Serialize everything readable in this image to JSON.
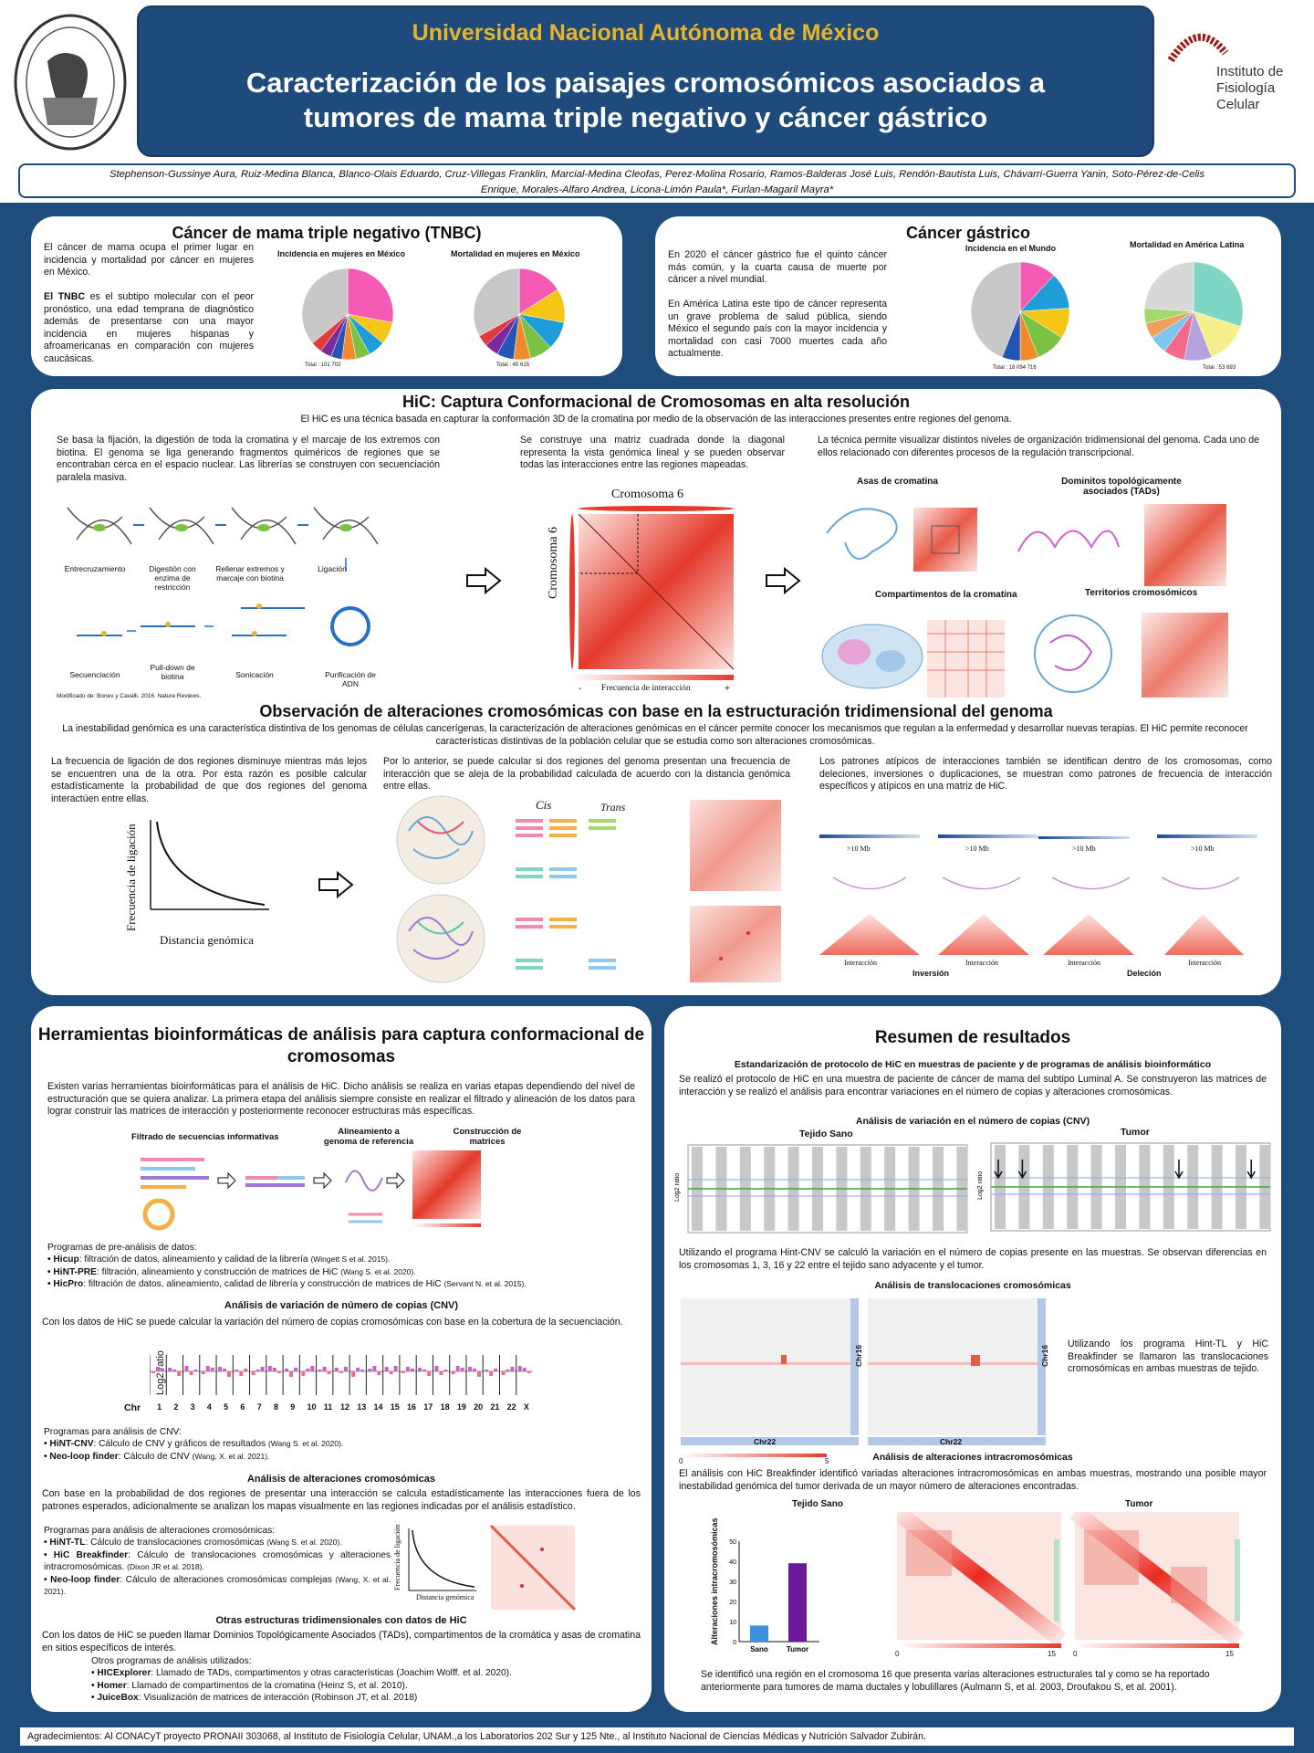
{
  "header": {
    "university": "Universidad Nacional Autónoma de México",
    "title_line1": "Caracterización de los paisajes cromosómicos asociados a",
    "title_line2": "tumores de mama triple negativo y cáncer gástrico",
    "authors_line1": "Stephenson-Gussinye Aura, Ruiz-Medina Blanca, Blanco-Olais Eduardo, Cruz-Villegas Franklin, Marcial-Medina Cleofas, Perez-Molina Rosario, Ramos-Balderas José Luis, Rendón-Bautista Luis, Chávarri-Guerra Yanin, Soto-Pérez-de-Celis",
    "authors_line2": "Enrique, Morales-Alfaro Andrea, Licona-Limón Paula*, Furlan-Magaril Mayra*",
    "institute_logo": "Instituto de\nFisiología\nCelular",
    "unam_seal_text": "UNIVERSIDAD NACIONAL AUTÓNOMA DE MÉXICO"
  },
  "tnbc": {
    "title": "Cáncer de mama triple negativo (TNBC)",
    "p1": "El cáncer de mama ocupa el primer lugar en incidencia y mortalidad por cáncer en mujeres en México.",
    "p2_bold": "El TNBC",
    "p2": " es el subtipo molecular con el peor pronóstico, una edad temprana de diagnóstico además de presentarse con una mayor incidencia en mujeres hispanas y afroamericanas en comparación con mujeres caucásicas.",
    "chart1_title": "Incidencia en mujeres en México",
    "chart1_total": "Total : 101 702",
    "chart2_title": "Mortalidad en mujeres en México",
    "chart2_total": "Total : 45 615"
  },
  "gastric": {
    "title": "Cáncer gástrico",
    "p1": "En 2020 el cáncer gástrico fue el quinto cáncer más común, y la cuarta causa de muerte por cáncer a nivel mundial.",
    "p2": "En América Latina este tipo de cáncer representa un grave problema de salud pública, siendo México el segundo país con la mayor incidencia y mortalidad con casi 7000 muertes cada año actualmente.",
    "chart1_title": "Incidencia en el Mundo",
    "chart1_total": "Total : 18 094 716",
    "chart2_title": "Mortalidad en América Latina",
    "chart2_total": "Total : 53 893"
  },
  "hic": {
    "title": "HiC: Captura Conformacional de Cromosomas en alta resolución",
    "intro": "El HiC es una técnica basada en capturar la conformación 3D de la cromatina por medio de la observación de las interacciones presentes entre regiones del genoma.",
    "col1": "Se basa la fijación, la digestión de toda la cromatina y el marcaje de los extremos con biotina. El genoma se liga generando fragmentos quiméricos de regiones que se encontraban cerca en el espacio nuclear. Las librerías se construyen con secuenciación paralela masiva.",
    "col2": "Se construye una matriz cuadrada donde la diagonal representa la vista genómica lineal y se pueden observar todas las interacciones entre las regiones mapeadas.",
    "col3": "La técnica permite visualizar distintos niveles de organización tridimensional del genoma. Cada uno de ellos relacionado con diferentes procesos de la regulación transcripcional.",
    "steps": [
      "Entrecruzamiento",
      "Digestión con enzima de restricción",
      "Rellenar extremos y marcaje con biotina",
      "Ligación",
      "Secuenciación",
      "Pull-down de biotina",
      "Sonicación",
      "Purificación de ADN"
    ],
    "credit": "Modificado de: Bonev y Cavalli. 2016. Nature Reviews.",
    "matrix_label": "Cromosoma 6",
    "freq_label": "Frecuencia de interacción",
    "levels": [
      "Asas de cromatina",
      "Dominitos topológicamente asociados (TADs)",
      "Compartimentos de la cromatina",
      "Territorios cromosómicos"
    ],
    "minus": "-",
    "plus": "+"
  },
  "obs": {
    "title": "Observación de alteraciones cromosómicas con base en la estructuración tridimensional del genoma",
    "intro": "La inestabilidad genómica es una característica distintiva de los genomas de células cancerígenas, la caracterización de alteraciones genómicas en el cáncer permite conocer los mecanismos que regulan a la enfermedad y desarrollar nuevas terapias. El HiC permite reconocer características distintivas de la población celular que se estudia como son alteraciones cromosómicas.",
    "col1": "La frecuencia de ligación de dos regiones disminuye mientras más lejos se encuentren una de la otra. Por esta razón es posible calcular estadísticamente la probabilidad de que dos regiones del genoma interactúen entre ellas.",
    "col2": "Por lo anterior, se puede calcular si dos regiones del genoma presentan una frecuencia de interacción que se aleja de la probabilidad calculada de acuerdo con la distancia genómica entre ellas.",
    "col3": "Los patrones atípicos de interacciones también se identifican dentro de los cromosomas, como deleciones, inversiones o duplicaciones, se muestran como patrones de frecuencia de interacción específicos y atípicos en una matriz de HiC.",
    "ylabel": "Frecuencia de ligación",
    "xlabel": "Distancia genómica",
    "cis": "Cis",
    "trans": "Trans",
    "mb": ">10 Mb",
    "interaccion": "Interacción",
    "inversion": "Inversión",
    "delecion": "Deleción"
  },
  "tools": {
    "title": "Herramientas bioinformáticas de análisis para captura conformacional de cromosomas",
    "intro": "Existen varias herramientas bioinformáticas para el análisis de HiC. Dicho análisis se realiza en varias etapas dependiendo del nivel de estructuración que se quiera analizar. La primera etapa del análisis siempre consiste en realizar el filtrado y alineación de los datos para lograr construir las matrices de interacción y posteriormente reconocer estructuras más específicas.",
    "stage1": "Filtrado de secuencias informativas",
    "stage2": "Alineamiento a genoma de referencia",
    "stage3": "Construcción de matrices",
    "pre_title": "Programas de pre-análisis de datos:",
    "pre": [
      {
        "name": "Hicup",
        "desc": ": filtración de datos, alineamiento y calidad de la librería",
        "ref": "(Wingett S et al. 2015)."
      },
      {
        "name": "HiNT-PRE",
        "desc": ": filtración, alineamiento y construcción de matrices de HiC",
        "ref": "(Wang S. et al. 2020)."
      },
      {
        "name": "HicPro",
        "desc": ": filtración de datos, alineamiento, calidad de librería y construcción de matrices de HiC",
        "ref": "(Servant N. et al. 2015)."
      }
    ],
    "cnv_title": "Análisis de variación de número de copias (CNV)",
    "cnv_text": "Con los datos de HiC se puede calcular la variación del número de copias cromosómicas con base en la cobertura de la secuenciación.",
    "cnv_ylabel": "Log2 ratio",
    "cnv_chr": "Chr",
    "cnv_ticks": [
      "1",
      "2",
      "3",
      "4",
      "5",
      "6",
      "7",
      "8",
      "9",
      "10",
      "11",
      "12",
      "13",
      "14",
      "15",
      "16",
      "17",
      "18",
      "19",
      "20",
      "21",
      "22",
      "X"
    ],
    "cnv_prog_title": "Programas para análisis de CNV:",
    "cnv_prog": [
      {
        "name": "HiNT-CNV",
        "desc": ": Cálculo de CNV y gráficos de resultados",
        "ref": "(Wang S. et al. 2020)."
      },
      {
        "name": "Neo-loop finder",
        "desc": ": Cálculo de CNV",
        "ref": "(Wang, X. et al. 2021)."
      }
    ],
    "alt_title": "Análisis de alteraciones cromosómicas",
    "alt_text": "Con base en la probabilidad de dos regiones de presentar una interacción se calcula estadísticamente las interacciones fuera de los patrones esperados, adicionalmente se analizan los mapas visualmente en las regiones indicadas por el análisis estadístico.",
    "alt_prog_title": "Programas para análisis de alteraciones cromosómicas:",
    "alt_prog": [
      {
        "name": "HiNT-TL",
        "desc": ": Cálculo de translocaciones cromosómicas",
        "ref": "(Wang S. et al. 2020)."
      },
      {
        "name": "HiC Breakfinder",
        "desc": ": Cálculo de translocaciones cromosómicas y alteraciones intracromosómicas.",
        "ref": "(Dixon JR et al. 2018)."
      },
      {
        "name": "Neo-loop finder",
        "desc": ": Cálculo de alteraciones cromosómicas complejas",
        "ref": "(Wang, X. et al. 2021)."
      }
    ],
    "other_title": "Otras estructuras tridimensionales con datos de HiC",
    "other_text": "Con los datos de HiC se pueden llamar Dominios Topológicamente Asociados (TADs), compartimentos de la cromática y asas de cromatina en sitios específicos de interés.",
    "other_prog_title": "Otros programas de análisis utilizados:",
    "other_prog": [
      {
        "name": "HICExplorer",
        "desc": ": Llamado de TADs, compartimentos y otras características (Joachim Wolff. et al. 2020)."
      },
      {
        "name": "Homer",
        "desc": ": Llamado de compartimentos de la cromatina (Heinz S, et al. 2010)."
      },
      {
        "name": "JuiceBox",
        "desc": ": Visualización de matrices de interacción  (Robinson JT, et al. 2018)"
      }
    ]
  },
  "results": {
    "title": "Resumen de resultados",
    "sub1": "Estandarización de protocolo de HiC en muestras de paciente y de programas de análisis bioinformático",
    "text1": "Se realizó el protocolo de HiC en una muestra de paciente de cáncer de mama del subtipo Luminal A. Se construyeron las matrices de interacción y se realizó el análisis para encontrar variaciones en el número de copias y alteraciones cromosómicas.",
    "cnv_title": "Análisis de variación en el número de copias (CNV)",
    "sano": "Tejido Sano",
    "tumor": "Tumor",
    "log2": "Log2 ratio",
    "text2": "Utilizando el programa Hint-CNV se calculó la variación en el número de copias presente en las muestras. Se observan diferencias en los cromosomas 1, 3, 16 y 22 entre el tejido sano adyacente y el tumor.",
    "tl_title": "Análisis de translocaciones cromosómicas",
    "chr16": "Chr16",
    "chr22": "Chr22",
    "scale0": "0",
    "scale5": "5",
    "scale15": "15",
    "tl_text": "Utilizando los programa Hint-TL y HiC Breakfinder se llamaron las translocaciones cromosómicas en ambas muestras de tejido.",
    "intra_title": "Análisis de alteraciones intracromosómicas",
    "intra_text": "El análisis con HiC Breakfinder identificó variadas alteraciones intracromosómicas en ambas muestras, mostrando una posible mayor inestabilidad genómica del tumor derivada de un mayor número de alteraciones encontradas.",
    "bar_ylabel": "Alteraciones intracromosómicas",
    "final_text": "Se identificó una región en el cromosoma 16 que presenta varias alteraciones estructurales tal y como se ha reportado anteriormente para tumores de mama ductales y lobulillares (Aulmann S, et al. 2003, Droufakou S, et al. 2001)."
  },
  "ack": "Agradecimientos: Al CONACyT proyecto PRONAII 303068, al Instituto de Fisiología Celular, UNAM.,a los Laboratorios 202 Sur y 125 Nte., al Instituto Nacional de Ciencias Médicas y Nutrición Salvador Zubirán.",
  "chart_data": [
    {
      "type": "bar",
      "categories": [
        "Sano",
        "Tumor"
      ],
      "values": [
        8,
        39
      ],
      "ylabel": "Alteraciones intracromosómicas",
      "ylim": [
        0,
        50
      ],
      "yticks": [
        0,
        10,
        20,
        30,
        40,
        50
      ],
      "colors": [
        "#3d8fe0",
        "#6a1a9a"
      ]
    },
    {
      "type": "pie",
      "title": "Incidencia en mujeres en México",
      "values": [
        28,
        8,
        6,
        5,
        5,
        4,
        4,
        4,
        36
      ],
      "colors": [
        "#f55ab4",
        "#f5c518",
        "#1f9dd9",
        "#7cc242",
        "#f18a2b",
        "#2455b4",
        "#7a2a9c",
        "#e23b3b",
        "#c8c8c8"
      ]
    },
    {
      "type": "pie",
      "title": "Mortalidad en mujeres en México",
      "values": [
        16,
        12,
        10,
        8,
        6,
        6,
        5,
        4,
        33
      ],
      "colors": [
        "#f55ab4",
        "#f5c518",
        "#1f9dd9",
        "#7cc242",
        "#f18a2b",
        "#2455b4",
        "#7a2a9c",
        "#e23b3b",
        "#c8c8c8"
      ]
    },
    {
      "type": "pie",
      "title": "Incidencia en el Mundo",
      "values": [
        12,
        12,
        10,
        10,
        6,
        6,
        44
      ],
      "colors": [
        "#f55ab4",
        "#1f9dd9",
        "#f5c518",
        "#7cc242",
        "#f18a2b",
        "#2455b4",
        "#c8c8c8"
      ]
    },
    {
      "type": "pie",
      "title": "Mortalidad en América Latina",
      "values": [
        30,
        14,
        9,
        7,
        6,
        5,
        5,
        24
      ],
      "colors": [
        "#7fd6c4",
        "#f5f08c",
        "#b7a2e0",
        "#f56a8b",
        "#7cc6f0",
        "#f0a05a",
        "#a3d86b",
        "#d8d8d8"
      ]
    }
  ]
}
